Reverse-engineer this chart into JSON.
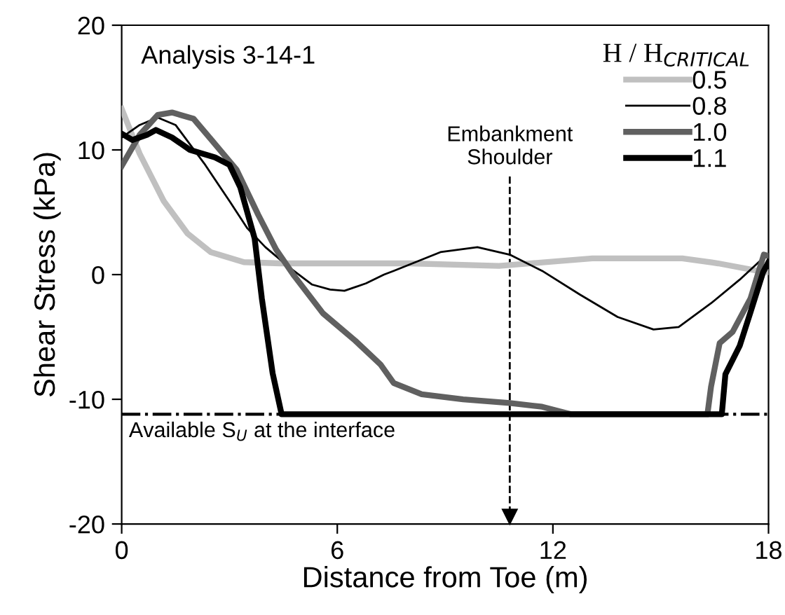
{
  "chart_data": {
    "type": "line",
    "title": "Analysis 3-14-1",
    "xlabel": "Distance from Toe (m)",
    "ylabel": "Shear Stress (kPa)",
    "legend_title": "H / H$_{CRITICAL}$",
    "xlim": [
      0,
      18
    ],
    "xticks": [
      0,
      6,
      12,
      18
    ],
    "ylim": [
      -20,
      20
    ],
    "yticks": [
      -20,
      -10,
      0,
      10,
      20
    ],
    "grid": false,
    "legend": "top right",
    "marker": "none",
    "line_style": "solid",
    "series": [
      {
        "name": "0.5",
        "color": "#c0c0c0",
        "x": [
          0,
          0.5,
          1.17,
          1.83,
          2.48,
          3.4,
          4.4,
          6,
          8,
          10.5,
          13.1,
          15.6,
          16.6,
          17.7,
          18
        ],
        "values": [
          13.3,
          9.7,
          5.9,
          3.3,
          1.8,
          1.0,
          0.9,
          0.9,
          0.9,
          0.7,
          1.3,
          1.3,
          0.9,
          0.3,
          0.2
        ]
      },
      {
        "name": "0.8",
        "color": "#000000",
        "x": [
          0,
          0.5,
          1.0,
          1.5,
          2.3,
          3.0,
          3.5,
          4.0,
          4.7,
          5.3,
          5.8,
          6.2,
          6.8,
          7.3,
          7.57,
          8.87,
          9.9,
          10.8,
          11.7,
          12.75,
          13.8,
          14.8,
          15.5,
          16.4,
          17.2,
          17.8,
          18
        ],
        "values": [
          11.0,
          12.0,
          12.6,
          12.0,
          8.9,
          5.9,
          3.7,
          2.2,
          0.5,
          -0.8,
          -1.2,
          -1.3,
          -0.7,
          0.0,
          0.3,
          1.8,
          2.2,
          1.6,
          0.3,
          -1.6,
          -3.4,
          -4.4,
          -4.2,
          -2.3,
          -0.4,
          1.2,
          1.5
        ]
      },
      {
        "name": "1.0",
        "color": "#606060",
        "x": [
          0,
          0.5,
          1.0,
          1.4,
          2.0,
          2.5,
          3.2,
          3.8,
          4.3,
          4.8,
          5.6,
          6.5,
          7.2,
          7.57,
          8.35,
          9.5,
          10.8,
          11.7,
          12.36,
          12.5,
          16.3,
          16.4,
          16.64,
          17.0,
          17.5,
          17.87,
          18
        ],
        "values": [
          8.7,
          11.2,
          12.8,
          13.0,
          12.5,
          10.8,
          8.4,
          4.8,
          2.0,
          -0.1,
          -3.1,
          -5.3,
          -7.2,
          -8.7,
          -9.6,
          -10.0,
          -10.3,
          -10.6,
          -11.1,
          -11.2,
          -11.2,
          -9.0,
          -5.5,
          -4.6,
          -1.9,
          1.6,
          1.5
        ]
      },
      {
        "name": "1.1",
        "color": "#000000",
        "x": [
          0,
          0.3,
          0.7,
          0.95,
          1.4,
          1.9,
          2.6,
          3.0,
          3.3,
          3.7,
          3.9,
          4.2,
          4.45,
          16.7,
          16.8,
          17.2,
          17.5,
          17.85,
          18
        ],
        "values": [
          11.3,
          10.8,
          11.2,
          11.6,
          11.0,
          10.0,
          9.4,
          8.8,
          7.0,
          2.9,
          -1.9,
          -7.9,
          -11.2,
          -11.2,
          -8.0,
          -5.7,
          -3.0,
          0.2,
          1.0
        ]
      }
    ],
    "ref_lines": [
      {
        "axis": "y",
        "value": -11.2,
        "label": "Available S$_{U}$ at the interface",
        "color": "#000000",
        "line_style": "dashdot"
      },
      {
        "axis": "x",
        "value": 10.8,
        "label": "Embankment\nShoulder",
        "color": "#000000",
        "line_style": "dashed"
      }
    ]
  }
}
